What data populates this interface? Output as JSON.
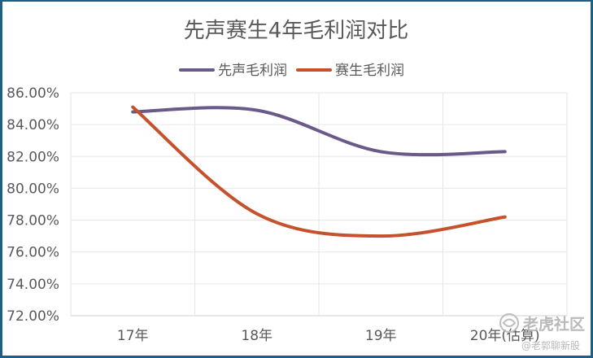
{
  "chart_data": {
    "type": "line",
    "title": "先声赛生4年毛利润对比",
    "categories": [
      "17年",
      "18年",
      "19年",
      "20年(估算)"
    ],
    "series": [
      {
        "name": "先声毛利润",
        "values": [
          84.8,
          84.9,
          82.3,
          82.3
        ],
        "color": "#6a5a8a"
      },
      {
        "name": "赛生毛利润",
        "values": [
          85.1,
          78.4,
          77.0,
          78.2
        ],
        "color": "#c5522d"
      }
    ],
    "ylim": [
      72,
      86
    ],
    "ytick_step": 2,
    "ytick_labels": [
      "72.00%",
      "74.00%",
      "76.00%",
      "78.00%",
      "80.00%",
      "82.00%",
      "84.00%",
      "86.00%"
    ],
    "xlabel": "",
    "ylabel": "",
    "grid": true,
    "legend_position": "top"
  },
  "watermark": {
    "logo": "老虎社区",
    "handle": "@老郭聊新股"
  }
}
